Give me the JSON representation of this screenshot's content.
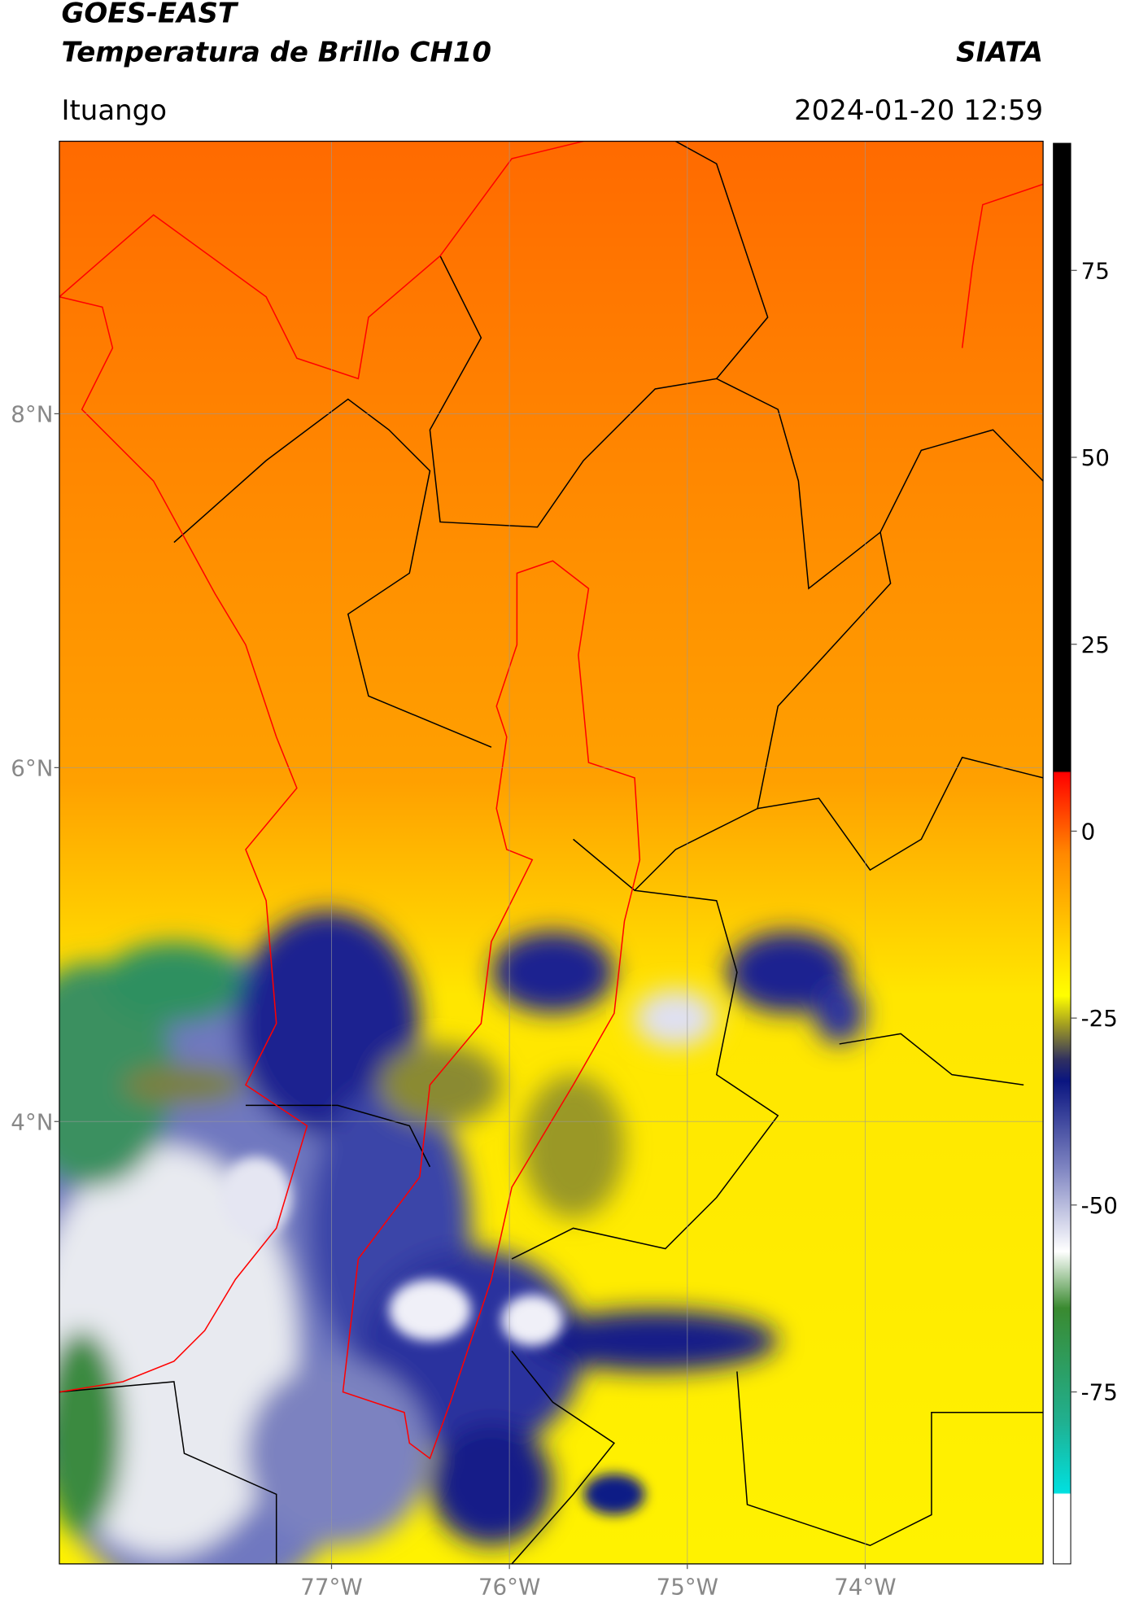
{
  "header": {
    "title": "GOES-EAST",
    "subtitle": "Temperatura de Brillo CH10",
    "source": "SIATA",
    "location": "Ituango",
    "timestamp": "2024-01-20 12:59"
  },
  "map": {
    "xlim": [
      -78.53,
      -73.0
    ],
    "ylim": [
      1.5,
      9.54
    ],
    "xticks": [
      {
        "value": -77,
        "label": "77°W"
      },
      {
        "value": -76,
        "label": "76°W"
      },
      {
        "value": -75,
        "label": "75°W"
      },
      {
        "value": -74,
        "label": "74°W"
      }
    ],
    "yticks": [
      {
        "value": 8,
        "label": "8°N"
      },
      {
        "value": 6,
        "label": "6°N"
      },
      {
        "value": 4,
        "label": "4°N"
      }
    ],
    "grid": true
  },
  "colorbar": {
    "lim": [
      -98,
      92
    ],
    "ticks": [
      75,
      50,
      25,
      0,
      -25,
      -50,
      -75
    ]
  }
}
